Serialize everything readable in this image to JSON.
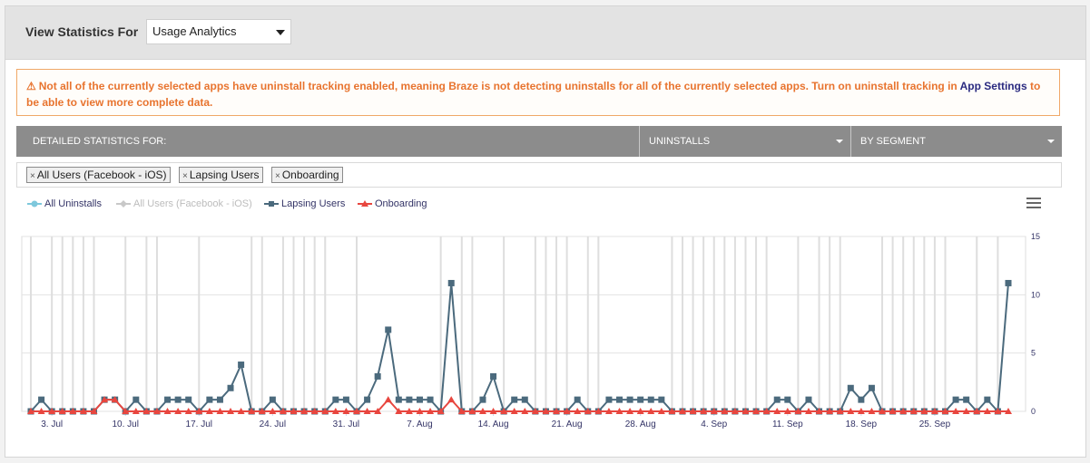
{
  "header": {
    "title": "View Statistics For",
    "select_value": "Usage Analytics"
  },
  "warning": {
    "icon": "warning-triangle-icon",
    "text_before": "Not all of the currently selected apps have uninstall tracking enabled, meaning Braze is not detecting uninstalls for all of the currently selected apps. Turn on uninstall tracking in",
    "link": "App Settings",
    "text_after": "to be able to view more complete data."
  },
  "stats_bar": {
    "label": "DETAILED STATISTICS FOR:",
    "metric": "UNINSTALLS",
    "breakdown": "BY SEGMENT"
  },
  "tags": [
    {
      "label": "All Users (Facebook - iOS)"
    },
    {
      "label": "Lapsing Users"
    },
    {
      "label": "Onboarding"
    }
  ],
  "chart_data": {
    "type": "line",
    "legend": [
      {
        "name": "All Uninstalls",
        "color": "#7ec8dc",
        "marker": "circle",
        "enabled": true
      },
      {
        "name": "All Users (Facebook - iOS)",
        "color": "#c8c8c8",
        "marker": "diamond",
        "enabled": false
      },
      {
        "name": "Lapsing Users",
        "color": "#4b6a7d",
        "marker": "square",
        "enabled": true
      },
      {
        "name": "Onboarding",
        "color": "#e8463f",
        "marker": "triangle",
        "enabled": true
      }
    ],
    "y_ticks": [
      "0",
      "5",
      "10",
      "15"
    ],
    "ylim": [
      0,
      15
    ],
    "x_ticks": [
      {
        "label": "3. Jul",
        "day": 2
      },
      {
        "label": "10. Jul",
        "day": 9
      },
      {
        "label": "17. Jul",
        "day": 16
      },
      {
        "label": "24. Jul",
        "day": 23
      },
      {
        "label": "31. Jul",
        "day": 30
      },
      {
        "label": "7. Aug",
        "day": 37
      },
      {
        "label": "14. Aug",
        "day": 44
      },
      {
        "label": "21. Aug",
        "day": 51
      },
      {
        "label": "28. Aug",
        "day": 58
      },
      {
        "label": "4. Sep",
        "day": 65
      },
      {
        "label": "11. Sep",
        "day": 72
      },
      {
        "label": "18. Sep",
        "day": 79
      },
      {
        "label": "25. Sep",
        "day": 86
      }
    ],
    "series": [
      {
        "name": "Lapsing Users",
        "color": "#4b6a7d",
        "values": [
          0,
          1,
          0,
          0,
          0,
          0,
          0,
          1,
          1,
          0,
          1,
          0,
          0,
          1,
          1,
          1,
          0,
          1,
          1,
          2,
          4,
          0,
          0,
          1,
          0,
          0,
          0,
          0,
          0,
          1,
          1,
          0,
          1,
          3,
          7,
          1,
          1,
          1,
          1,
          0,
          11,
          0,
          0,
          1,
          3,
          0,
          1,
          1,
          0,
          0,
          0,
          0,
          1,
          0,
          0,
          1,
          1,
          1,
          1,
          1,
          1,
          0,
          0,
          0,
          0,
          0,
          0,
          0,
          0,
          0,
          0,
          1,
          1,
          0,
          1,
          0,
          0,
          0,
          2,
          1,
          2,
          0,
          0,
          0,
          0,
          0,
          0,
          0,
          1,
          1,
          0,
          1,
          0,
          11
        ]
      },
      {
        "name": "Onboarding",
        "color": "#e8463f",
        "values": [
          0,
          0,
          0,
          0,
          0,
          0,
          0,
          1,
          1,
          0,
          0,
          0,
          0,
          0,
          0,
          0,
          0,
          0,
          0,
          0,
          0,
          0,
          0,
          0,
          0,
          0,
          0,
          0,
          0,
          0,
          0,
          0,
          0,
          0,
          1,
          0,
          0,
          0,
          0,
          0,
          1,
          0,
          0,
          0,
          0,
          0,
          0,
          0,
          0,
          0,
          0,
          0,
          0,
          0,
          0,
          0,
          0,
          0,
          0,
          0,
          0,
          0,
          0,
          0,
          0,
          0,
          0,
          0,
          0,
          0,
          0,
          0,
          0,
          0,
          0,
          0,
          0,
          0,
          0,
          0,
          0,
          0,
          0,
          0,
          0,
          0,
          0,
          0,
          0,
          0,
          0,
          0,
          0,
          0
        ]
      }
    ]
  }
}
